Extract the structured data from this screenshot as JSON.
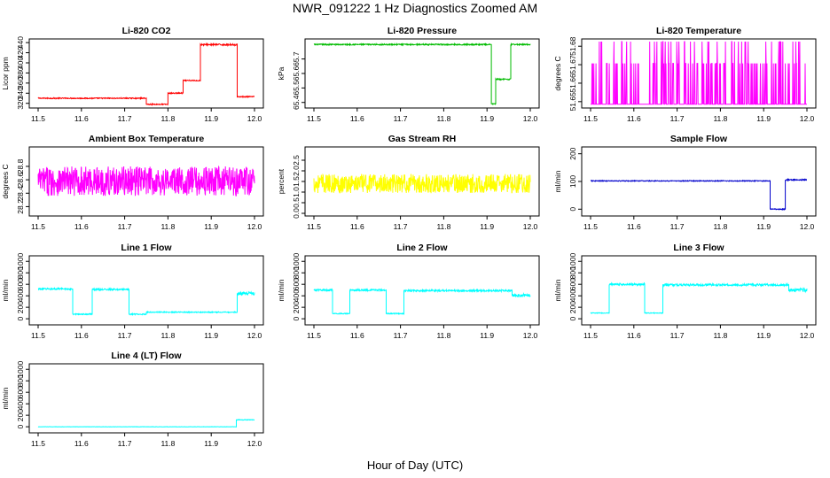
{
  "title": "NWR_091222  1 Hz Diagnostics Zoomed AM",
  "xlabel": "Hour of Day (UTC)",
  "chart_data": [
    {
      "type": "line",
      "title": "Li-820 CO2",
      "ylabel": "Licor ppm",
      "color": "#ff0000",
      "xlim": [
        11.5,
        12.0
      ],
      "xticks": [
        11.5,
        11.6,
        11.7,
        11.8,
        11.9,
        12.0
      ],
      "ylim": [
        316,
        442
      ],
      "yticks": [
        320,
        340,
        360,
        380,
        400,
        420,
        440
      ],
      "segments": [
        {
          "x": [
            11.5,
            11.75
          ],
          "y": 330,
          "noise": 1
        },
        {
          "x": [
            11.75,
            11.8
          ],
          "y": 318,
          "noise": 1
        },
        {
          "x": [
            11.8,
            11.835
          ],
          "y": 340,
          "noise": 1
        },
        {
          "x": [
            11.835,
            11.875
          ],
          "y": 365,
          "noise": 1
        },
        {
          "x": [
            11.875,
            11.96
          ],
          "y": 436,
          "noise": 1.5
        },
        {
          "x": [
            11.96,
            12.0
          ],
          "y": 333,
          "noise": 1
        }
      ]
    },
    {
      "type": "line",
      "title": "Li-820 Pressure",
      "ylabel": "kPa",
      "color": "#00bb00",
      "xlim": [
        11.5,
        12.0
      ],
      "xticks": [
        11.5,
        11.6,
        11.7,
        11.8,
        11.9,
        12.0
      ],
      "ylim": [
        65.38,
        65.82
      ],
      "yticks": [
        65.4,
        65.5,
        65.6,
        65.7
      ],
      "segments": [
        {
          "x": [
            11.5,
            11.91
          ],
          "y": 65.8,
          "noise": 0.004
        },
        {
          "x": [
            11.91,
            11.92
          ],
          "y": 65.39,
          "noise": 0.003
        },
        {
          "x": [
            11.92,
            11.955
          ],
          "y": 65.56,
          "noise": 0.004
        },
        {
          "x": [
            11.955,
            12.0
          ],
          "y": 65.8,
          "noise": 0.004
        }
      ]
    },
    {
      "type": "line",
      "title": "Li-820 Temperature",
      "ylabel": "degrees C",
      "color": "#ff00ff",
      "xlim": [
        11.5,
        12.0
      ],
      "xticks": [
        11.5,
        11.6,
        11.7,
        11.8,
        11.9,
        12.0
      ],
      "ylim": [
        51.648,
        51.6825
      ],
      "yticks": [
        51.65,
        51.66,
        51.67,
        51.68
      ],
      "digital": {
        "low": 51.6486,
        "high": 51.6707,
        "spike": 51.6825
      }
    },
    {
      "type": "line",
      "title": "Ambient Box Temperature",
      "ylabel": "degrees C",
      "color": "#ff00ff",
      "xlim": [
        11.5,
        12.0
      ],
      "xticks": [
        11.5,
        11.6,
        11.7,
        11.8,
        11.9,
        12.0
      ],
      "ylim": [
        28.1,
        29.05
      ],
      "yticks": [
        28.2,
        28.4,
        28.6,
        28.8
      ],
      "segments": [
        {
          "x": [
            11.5,
            12.0
          ],
          "y": 28.58,
          "noise": 0.22
        }
      ]
    },
    {
      "type": "line",
      "title": "Gas Stream RH",
      "ylabel": "percent",
      "color": "#ffff00",
      "xlim": [
        11.5,
        12.0
      ],
      "xticks": [
        11.5,
        11.6,
        11.7,
        11.8,
        11.9,
        12.0
      ],
      "ylim": [
        0,
        3.0
      ],
      "yticks": [
        0.0,
        0.5,
        1.0,
        1.5,
        2.0,
        2.5
      ],
      "segments": [
        {
          "x": [
            11.5,
            12.0
          ],
          "y": 1.4,
          "noise": 0.45
        }
      ]
    },
    {
      "type": "line",
      "title": "Sample Flow",
      "ylabel": "ml/min",
      "color": "#0000cc",
      "xlim": [
        11.5,
        12.0
      ],
      "xticks": [
        11.5,
        11.6,
        11.7,
        11.8,
        11.9,
        12.0
      ],
      "ylim": [
        -15,
        215
      ],
      "yticks": [
        0,
        100,
        200
      ],
      "segments": [
        {
          "x": [
            11.5,
            11.915
          ],
          "y": 102,
          "noise": 1.5
        },
        {
          "x": [
            11.915,
            11.95
          ],
          "y": 0,
          "noise": 1.5
        },
        {
          "x": [
            11.95,
            12.0
          ],
          "y": 106,
          "noise": 2
        }
      ]
    },
    {
      "type": "line",
      "title": "Line 1 Flow",
      "ylabel": "ml/min",
      "color": "#00ffff",
      "xlim": [
        11.5,
        12.0
      ],
      "xticks": [
        11.5,
        11.6,
        11.7,
        11.8,
        11.9,
        12.0
      ],
      "ylim": [
        -60,
        1050
      ],
      "yticks": [
        0,
        200,
        400,
        600,
        800,
        1000
      ],
      "segments": [
        {
          "x": [
            11.5,
            11.58
          ],
          "y": 520,
          "noise": 15
        },
        {
          "x": [
            11.58,
            11.625
          ],
          "y": 80,
          "noise": 10
        },
        {
          "x": [
            11.625,
            11.71
          ],
          "y": 510,
          "noise": 15
        },
        {
          "x": [
            11.71,
            11.75
          ],
          "y": 80,
          "noise": 10
        },
        {
          "x": [
            11.75,
            11.96
          ],
          "y": 115,
          "noise": 8
        },
        {
          "x": [
            11.96,
            12.0
          ],
          "y": 440,
          "noise": 30
        }
      ]
    },
    {
      "type": "line",
      "title": "Line 2 Flow",
      "ylabel": "ml/min",
      "color": "#00ffff",
      "xlim": [
        11.5,
        12.0
      ],
      "xticks": [
        11.5,
        11.6,
        11.7,
        11.8,
        11.9,
        12.0
      ],
      "ylim": [
        -60,
        1050
      ],
      "yticks": [
        0,
        200,
        400,
        600,
        800,
        1000
      ],
      "segments": [
        {
          "x": [
            11.5,
            11.543
          ],
          "y": 500,
          "noise": 15
        },
        {
          "x": [
            11.543,
            11.583
          ],
          "y": 90,
          "noise": 8
        },
        {
          "x": [
            11.583,
            11.667
          ],
          "y": 500,
          "noise": 15
        },
        {
          "x": [
            11.667,
            11.708
          ],
          "y": 90,
          "noise": 8
        },
        {
          "x": [
            11.708,
            11.958
          ],
          "y": 490,
          "noise": 15
        },
        {
          "x": [
            11.958,
            12.0
          ],
          "y": 410,
          "noise": 25
        }
      ]
    },
    {
      "type": "line",
      "title": "Line 3 Flow",
      "ylabel": "ml/min",
      "color": "#00ffff",
      "xlim": [
        11.5,
        12.0
      ],
      "xticks": [
        11.5,
        11.6,
        11.7,
        11.8,
        11.9,
        12.0
      ],
      "ylim": [
        -60,
        1050
      ],
      "yticks": [
        0,
        200,
        400,
        600,
        800,
        1000
      ],
      "segments": [
        {
          "x": [
            11.5,
            11.543
          ],
          "y": 100,
          "noise": 6
        },
        {
          "x": [
            11.543,
            11.625
          ],
          "y": 600,
          "noise": 18
        },
        {
          "x": [
            11.625,
            11.667
          ],
          "y": 100,
          "noise": 6
        },
        {
          "x": [
            11.667,
            11.958
          ],
          "y": 590,
          "noise": 18
        },
        {
          "x": [
            11.958,
            12.0
          ],
          "y": 500,
          "noise": 30
        }
      ]
    },
    {
      "type": "line",
      "title": "Line 4 (LT) Flow",
      "ylabel": "ml/min",
      "color": "#00ffff",
      "xlim": [
        11.5,
        12.0
      ],
      "xticks": [
        11.5,
        11.6,
        11.7,
        11.8,
        11.9,
        12.0
      ],
      "ylim": [
        -60,
        1050
      ],
      "yticks": [
        0,
        200,
        400,
        600,
        800,
        1000
      ],
      "segments": [
        {
          "x": [
            11.5,
            11.958
          ],
          "y": 0,
          "noise": 2
        },
        {
          "x": [
            11.958,
            12.0
          ],
          "y": 120,
          "noise": 6
        }
      ]
    }
  ]
}
